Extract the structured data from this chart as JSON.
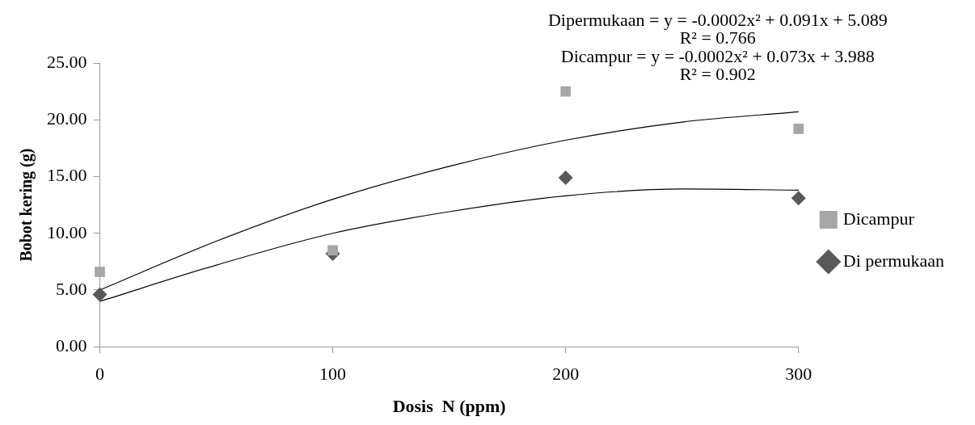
{
  "chart_data": {
    "type": "scatter",
    "xlabel": "Dosis  N (ppm)",
    "ylabel": "Bobot kering (g)",
    "xlim": [
      0,
      300
    ],
    "xticks": [
      0,
      100,
      200,
      300
    ],
    "ylim": [
      0,
      25
    ],
    "yticks": [
      {
        "value": 0,
        "label": "0.00"
      },
      {
        "value": 5,
        "label": "5.00"
      },
      {
        "value": 10,
        "label": "10.00"
      },
      {
        "value": 15,
        "label": "15.00"
      },
      {
        "value": 20,
        "label": "20.00"
      },
      {
        "value": 25,
        "label": "25.00"
      }
    ],
    "grid": false,
    "legend": "right",
    "series": [
      {
        "type": "line",
        "color": "#000000",
        "marker": "none",
        "x": [
          0,
          50,
          100,
          150,
          200,
          250,
          300
        ],
        "values": [
          5.0,
          9.3,
          13.0,
          15.9,
          18.2,
          19.8,
          20.7
        ]
      },
      {
        "type": "line",
        "color": "#000000",
        "marker": "none",
        "x": [
          0,
          50,
          100,
          150,
          200,
          250,
          300
        ],
        "values": [
          4.0,
          7.2,
          10.0,
          11.9,
          13.3,
          13.9,
          13.8
        ]
      },
      {
        "name": "Di permukaan",
        "color": "#595959",
        "marker": "diamond",
        "x": [
          0,
          100,
          200,
          300
        ],
        "values": [
          4.6,
          8.2,
          14.9,
          13.1
        ]
      },
      {
        "name": "Dicampur",
        "color": "#a6a6a6",
        "marker": "square",
        "x": [
          0,
          100,
          200,
          300
        ],
        "values": [
          6.6,
          8.5,
          22.5,
          19.2
        ]
      }
    ],
    "annotations": [
      "Dipermukaan = y = -0.0002x² + 0.091x + 5.089",
      "R² = 0.766",
      "Dicampur = y = -0.0002x² + 0.073x + 3.988",
      "R² = 0.902"
    ]
  }
}
